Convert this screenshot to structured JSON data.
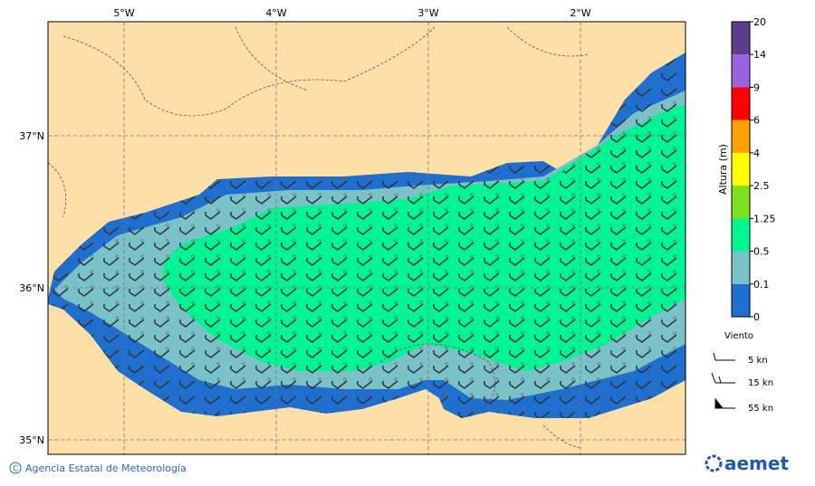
{
  "map": {
    "lon_labels": [
      "5°W",
      "4°W",
      "3°W",
      "2°W"
    ],
    "lat_labels": [
      "37°N",
      "36°N",
      "35°N"
    ],
    "colorbar": {
      "label": "Altura (m)",
      "levels": [
        0,
        0.1,
        0.5,
        1.25,
        2.5,
        4,
        6,
        9,
        14,
        20
      ],
      "colors": [
        "#1f6fd0",
        "#78c2c8",
        "#00f492",
        "#7fe020",
        "#ffff00",
        "#ffa200",
        "#ff0000",
        "#9b63df",
        "#5b3f8d"
      ]
    },
    "wind_legend": {
      "title": "Viento",
      "items": [
        "5 kn",
        "15 kn",
        "55 kn"
      ]
    },
    "credit": "Agencia Estatal de Meteorología",
    "logo": "aemet"
  }
}
